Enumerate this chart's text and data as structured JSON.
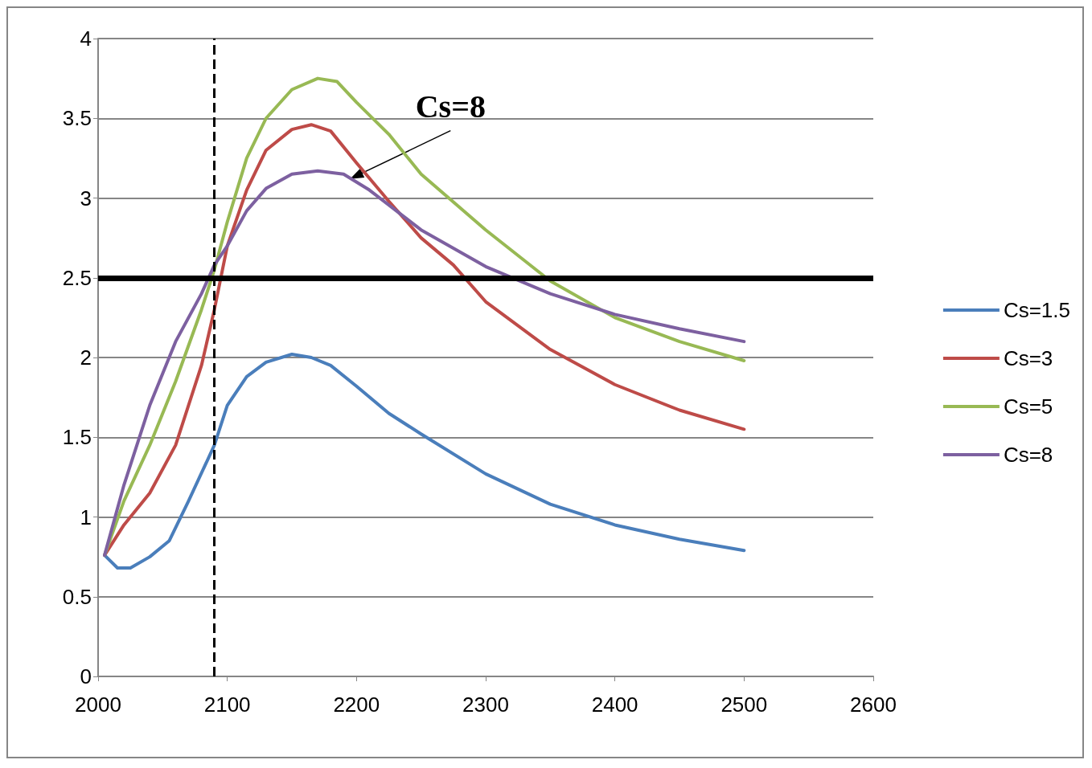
{
  "chart_data": {
    "type": "line",
    "xlim": [
      2000,
      2600
    ],
    "xticks": [
      2000,
      2100,
      2200,
      2300,
      2400,
      2500,
      2600
    ],
    "ylim": [
      0,
      4
    ],
    "yticks": [
      0,
      0.5,
      1,
      1.5,
      2,
      2.5,
      3,
      3.5,
      4
    ],
    "grid": "y",
    "legend": "right",
    "marker": "none",
    "line_style": "solid",
    "series": [
      {
        "name": "Cs=1.5",
        "color": "#4a7ebb",
        "x": [
          2005,
          2015,
          2025,
          2040,
          2055,
          2070,
          2090,
          2100,
          2115,
          2130,
          2150,
          2165,
          2180,
          2200,
          2225,
          2250,
          2300,
          2350,
          2400,
          2450,
          2500
        ],
        "values": [
          0.76,
          0.68,
          0.68,
          0.75,
          0.85,
          1.1,
          1.45,
          1.7,
          1.88,
          1.97,
          2.02,
          2.0,
          1.95,
          1.82,
          1.65,
          1.52,
          1.27,
          1.08,
          0.95,
          0.86,
          0.79
        ]
      },
      {
        "name": "Cs=3",
        "color": "#be4b48",
        "x": [
          2005,
          2020,
          2040,
          2060,
          2080,
          2090,
          2100,
          2115,
          2130,
          2150,
          2165,
          2180,
          2200,
          2225,
          2250,
          2275,
          2300,
          2350,
          2400,
          2450,
          2500
        ],
        "values": [
          0.76,
          0.95,
          1.15,
          1.45,
          1.95,
          2.3,
          2.7,
          3.05,
          3.3,
          3.43,
          3.46,
          3.42,
          3.22,
          2.98,
          2.75,
          2.58,
          2.35,
          2.05,
          1.83,
          1.67,
          1.55
        ]
      },
      {
        "name": "Cs=5",
        "color": "#98b954",
        "x": [
          2005,
          2020,
          2040,
          2060,
          2080,
          2090,
          2100,
          2115,
          2130,
          2150,
          2170,
          2185,
          2200,
          2225,
          2250,
          2300,
          2350,
          2400,
          2450,
          2500
        ],
        "values": [
          0.76,
          1.1,
          1.45,
          1.85,
          2.3,
          2.55,
          2.85,
          3.25,
          3.5,
          3.68,
          3.75,
          3.73,
          3.6,
          3.4,
          3.15,
          2.8,
          2.48,
          2.25,
          2.1,
          1.98
        ]
      },
      {
        "name": "Cs=8",
        "color": "#7d60a0",
        "x": [
          2005,
          2020,
          2040,
          2060,
          2080,
          2090,
          2100,
          2115,
          2130,
          2150,
          2170,
          2190,
          2210,
          2250,
          2300,
          2350,
          2400,
          2450,
          2500
        ],
        "values": [
          0.76,
          1.2,
          1.7,
          2.1,
          2.4,
          2.58,
          2.7,
          2.92,
          3.06,
          3.15,
          3.17,
          3.15,
          3.05,
          2.8,
          2.57,
          2.4,
          2.27,
          2.18,
          2.1
        ]
      }
    ],
    "ref_lines": [
      {
        "axis": "y",
        "value": 2.5,
        "color": "#000000",
        "line_style": "solid"
      },
      {
        "axis": "x",
        "value": 2090,
        "color": "#000000",
        "line_style": "dashed"
      }
    ],
    "annotations": [
      {
        "text": "Cs=8",
        "x": 2195,
        "y": 3.12
      }
    ]
  }
}
